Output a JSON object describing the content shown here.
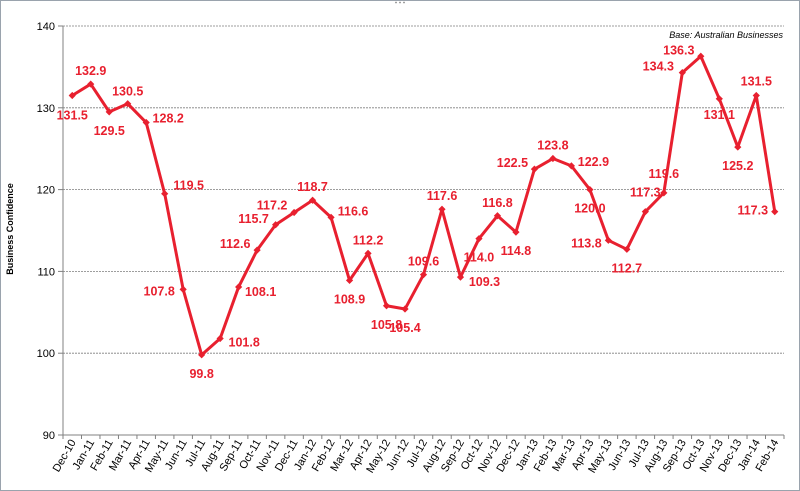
{
  "chart_data": {
    "type": "line",
    "title": "",
    "xlabel": "",
    "ylabel": "Business Confidence",
    "annotation": "Base: Australian Businesses",
    "ylim": [
      90,
      140
    ],
    "yticks": [
      90,
      100,
      110,
      120,
      130,
      140
    ],
    "grid": "horizontal",
    "legend": "none",
    "colors": {
      "line": "#e8202f",
      "label": "#e8202f",
      "grid": "#7f7f7f",
      "axis": "#808080"
    },
    "categories": [
      "Dec-10",
      "Jan-11",
      "Feb-11",
      "Mar-11",
      "Apr-11",
      "May-11",
      "Jun-11",
      "Jul-11",
      "Aug-11",
      "Sep-11",
      "Oct-11",
      "Nov-11",
      "Dec-11",
      "Jan-12",
      "Feb-12",
      "Mar-12",
      "Apr-12",
      "May-12",
      "Jun-12",
      "Jul-12",
      "Aug-12",
      "Sep-12",
      "Oct-12",
      "Nov-12",
      "Dec-12",
      "Jan-13",
      "Feb-13",
      "Mar-13",
      "Apr-13",
      "May-13",
      "Jun-13",
      "Jul-13",
      "Aug-13",
      "Sep-13",
      "Oct-13",
      "Nov-13",
      "Dec-13",
      "Jan-14",
      "Feb-14"
    ],
    "series": [
      {
        "values": [
          131.5,
          132.9,
          129.5,
          130.5,
          128.2,
          119.5,
          107.8,
          99.8,
          101.8,
          108.1,
          112.6,
          115.7,
          117.2,
          118.7,
          116.6,
          108.9,
          112.2,
          105.8,
          105.4,
          109.6,
          117.6,
          109.3,
          114.0,
          116.8,
          114.8,
          122.5,
          123.8,
          122.9,
          120.0,
          113.8,
          112.7,
          117.3,
          119.6,
          134.3,
          136.3,
          131.1,
          125.2,
          131.5,
          117.3
        ],
        "labels": [
          "131.5",
          "132.9",
          "129.5",
          "130.5",
          "128.2",
          "119.5",
          "107.8",
          "99.8",
          "101.8",
          "108.1",
          "112.6",
          "115.7",
          "117.2",
          "118.7",
          "116.6",
          "108.9",
          "112.2",
          "105.8",
          "105.4",
          "109.6",
          "117.6",
          "109.3",
          "114.0",
          "116.8",
          "114.8",
          "122.5",
          "123.8",
          "122.9",
          "120.0",
          "113.8",
          "112.7",
          "117.3",
          "119.6",
          "134.3",
          "136.3",
          "131.1",
          "125.2",
          "131.5",
          "117.3"
        ]
      }
    ]
  }
}
